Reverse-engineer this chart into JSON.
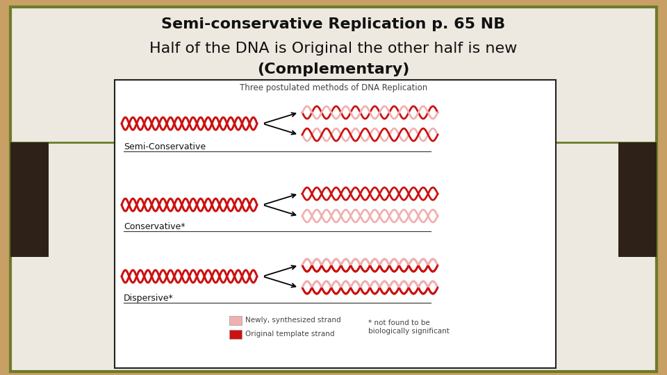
{
  "title_line1": "Semi-conservative Replication p. 65 NB",
  "title_line2a": "Half of the DNA is ",
  "title_bold": "Original",
  "title_line2b": " the other half is new",
  "title_line3": "(Complementary)",
  "bg_tan": "#c8a065",
  "slide_bg": "#ede9e0",
  "white_box_bg": "#ffffff",
  "border_olive": "#6b7c2a",
  "dark_brown": "#2e2218",
  "dna_dark": "#cc1111",
  "dna_light": "#f0b0b0",
  "text_dark": "#111111",
  "text_gray": "#444444",
  "line_color": "#333333",
  "green_line": "#6b7c2a",
  "img_border": "#222222"
}
